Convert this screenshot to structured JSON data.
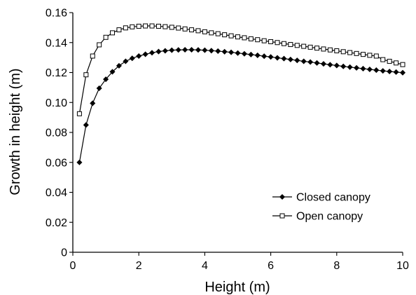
{
  "chart_data": {
    "type": "line",
    "xlabel": "Height (m)",
    "ylabel": "Growth in height (m)",
    "xlim": [
      0,
      10
    ],
    "ylim": [
      0,
      0.16
    ],
    "x_ticks": [
      "0",
      "2",
      "4",
      "6",
      "8",
      "10"
    ],
    "y_ticks": [
      "0",
      "0.02",
      "0.04",
      "0.06",
      "0.08",
      "0.10",
      "0.12",
      "0.14",
      "0.16"
    ],
    "grid": false,
    "legend_position": "center-right",
    "x": [
      0.2,
      0.4,
      0.6,
      0.8,
      1.0,
      1.2,
      1.4,
      1.6,
      1.8,
      2.0,
      2.2,
      2.4,
      2.6,
      2.8,
      3.0,
      3.2,
      3.4,
      3.6,
      3.8,
      4.0,
      4.2,
      4.4,
      4.6,
      4.8,
      5.0,
      5.2,
      5.4,
      5.6,
      5.8,
      6.0,
      6.2,
      6.4,
      6.6,
      6.8,
      7.0,
      7.2,
      7.4,
      7.6,
      7.8,
      8.0,
      8.2,
      8.4,
      8.6,
      8.8,
      9.0,
      9.2,
      9.4,
      9.6,
      9.8,
      10.0
    ],
    "series": [
      {
        "name": "Closed canopy",
        "marker": "filled-diamond",
        "color": "#000000",
        "values": [
          0.06,
          0.085,
          0.0995,
          0.1095,
          0.1155,
          0.1205,
          0.1245,
          0.1275,
          0.1295,
          0.131,
          0.1322,
          0.1332,
          0.134,
          0.1345,
          0.1349,
          0.1351,
          0.1352,
          0.1352,
          0.1351,
          0.1349,
          0.1346,
          0.1343,
          0.1339,
          0.1335,
          0.133,
          0.1325,
          0.132,
          0.1315,
          0.1309,
          0.1304,
          0.1298,
          0.1293,
          0.1287,
          0.1281,
          0.1275,
          0.127,
          0.1264,
          0.1258,
          0.1252,
          0.1247,
          0.1241,
          0.1236,
          0.1231,
          0.1226,
          0.1221,
          0.1216,
          0.1211,
          0.1207,
          0.1203,
          0.1199
        ]
      },
      {
        "name": "Open canopy",
        "marker": "open-square",
        "color": "#000000",
        "values": [
          0.0925,
          0.1185,
          0.131,
          0.1385,
          0.1435,
          0.1465,
          0.1485,
          0.1498,
          0.1505,
          0.1509,
          0.1511,
          0.1511,
          0.1509,
          0.1506,
          0.1502,
          0.1497,
          0.1491,
          0.1485,
          0.1479,
          0.1472,
          0.1465,
          0.1459,
          0.1452,
          0.1445,
          0.1438,
          0.1432,
          0.1425,
          0.1419,
          0.1412,
          0.1406,
          0.14,
          0.1393,
          0.1387,
          0.1381,
          0.1375,
          0.1369,
          0.1363,
          0.1357,
          0.1351,
          0.1345,
          0.1339,
          0.1333,
          0.1327,
          0.1321,
          0.1315,
          0.131,
          0.1286,
          0.1275,
          0.1264,
          0.1253
        ]
      }
    ]
  }
}
